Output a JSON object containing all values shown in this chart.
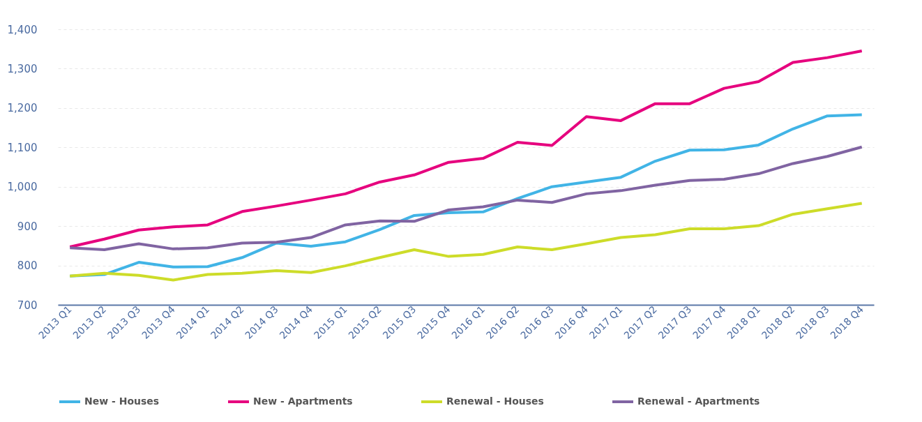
{
  "chart_data": {
    "type": "line",
    "categories": [
      "2013 Q1",
      "2013 Q2",
      "2013 Q3",
      "2013 Q4",
      "2014 Q1",
      "2014 Q2",
      "2014 Q3",
      "2014 Q4",
      "2015 Q1",
      "2015 Q2",
      "2015 Q3",
      "2015 Q4",
      "2016 Q1",
      "2016 Q2",
      "2016 Q3",
      "2016 Q4",
      "2017 Q1",
      "2017 Q2",
      "2017 Q3",
      "2017 Q4",
      "2018 Q1",
      "2018 Q2",
      "2018 Q3",
      "2018 Q4"
    ],
    "series": [
      {
        "name": "New - Houses",
        "color": "#41b4e6",
        "values": [
          773,
          777,
          808,
          796,
          797,
          820,
          857,
          849,
          860,
          891,
          927,
          934,
          936,
          970,
          1000,
          1012,
          1024,
          1065,
          1093,
          1094,
          1106,
          1147,
          1180,
          1183
        ]
      },
      {
        "name": "New - Apartments",
        "color": "#e6007e",
        "values": [
          847,
          867,
          890,
          898,
          903,
          937,
          951,
          966,
          982,
          1012,
          1030,
          1062,
          1072,
          1113,
          1105,
          1178,
          1168,
          1211,
          1211,
          1250,
          1267,
          1316,
          1328,
          1345
        ]
      },
      {
        "name": "Renewal - Houses",
        "color": "#cddc29",
        "values": [
          773,
          780,
          775,
          763,
          777,
          780,
          787,
          782,
          799,
          820,
          840,
          823,
          828,
          847,
          840,
          855,
          871,
          878,
          893,
          893,
          901,
          930,
          944,
          958
        ]
      },
      {
        "name": "Renewal - Apartments",
        "color": "#8064a2",
        "values": [
          845,
          840,
          855,
          842,
          845,
          857,
          859,
          871,
          903,
          913,
          912,
          941,
          949,
          966,
          960,
          982,
          990,
          1004,
          1016,
          1019,
          1033,
          1059,
          1077,
          1101
        ]
      }
    ],
    "ylim": [
      700,
      1400
    ],
    "yticks": [
      700,
      800,
      900,
      {
        "value": 1000,
        "label": "1,000"
      },
      {
        "value": 1100,
        "label": "1,100"
      },
      {
        "value": 1200,
        "label": "1,200"
      },
      {
        "value": 1300,
        "label": "1,300"
      },
      {
        "value": 1400,
        "label": "1,400"
      }
    ],
    "grid": "y",
    "legend": "bottom",
    "marker": "none",
    "line_style": "solid"
  }
}
